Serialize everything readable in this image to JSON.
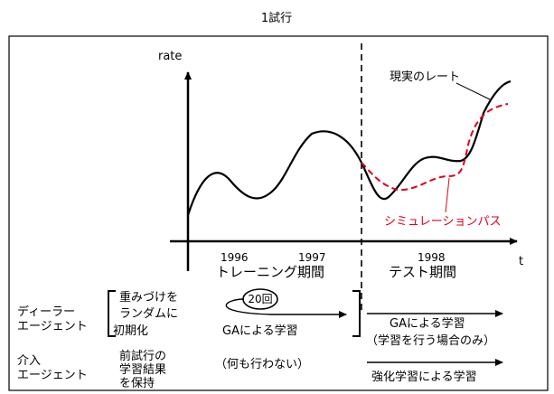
{
  "title": "1試行",
  "y_axis_label": "rate",
  "x_axis_label": "t",
  "years": [
    "1996",
    "1997",
    "1998"
  ],
  "periods": {
    "training": "トレーニング期間",
    "test": "テスト期間"
  },
  "legend": {
    "real": "現実のレート",
    "sim": "シミュレーションパス"
  },
  "colors": {
    "sim_path": "#e0001b",
    "lines": "#000000"
  },
  "dealer": {
    "label_line1": "ディーラー",
    "label_line2": "エージェント",
    "init_line1": "重みづけを",
    "init_line2": "ランダムに",
    "init_line3": "初期化",
    "repeat_badge": "20回",
    "train_action": "GAによる学習",
    "test_action_line1": "GAによる学習",
    "test_action_line2": "（学習を行う場合のみ）"
  },
  "intervention": {
    "label_line1": "介入",
    "label_line2": "エージェント",
    "prev_line1": "前試行の",
    "prev_line2": "学習結果",
    "prev_line3": "を保持",
    "train_action": "（何も行わない）",
    "test_action": "強化学習による学習"
  }
}
